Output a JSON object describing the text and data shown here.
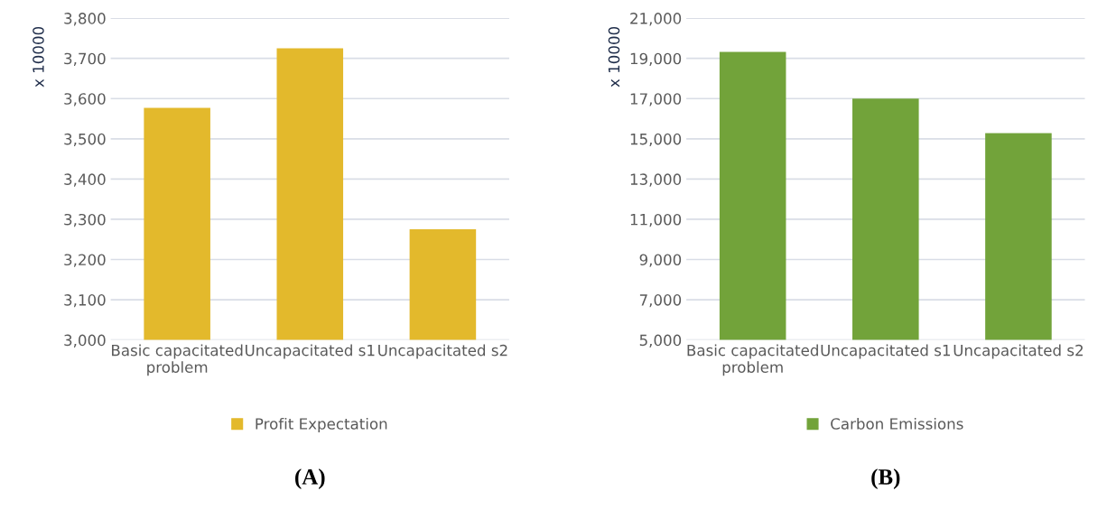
{
  "chart_data": [
    {
      "type": "bar",
      "categories": [
        "Basic capacitated problem",
        "Uncapacitated s1",
        "Uncapacitated s2"
      ],
      "ylabel": "x 10000",
      "series": [
        {
          "name": "Profit Expectation",
          "color": "#e3b92c",
          "values": [
            3577,
            3725,
            3275
          ]
        }
      ],
      "ylim": [
        3000,
        3800
      ],
      "yticks": [
        {
          "value": 3000,
          "label": "3,000"
        },
        {
          "value": 3100,
          "label": "3,100"
        },
        {
          "value": 3200,
          "label": "3,200"
        },
        {
          "value": 3300,
          "label": "3,300"
        },
        {
          "value": 3400,
          "label": "3,400"
        },
        {
          "value": 3500,
          "label": "3,500"
        },
        {
          "value": 3600,
          "label": "3,600"
        },
        {
          "value": 3700,
          "label": "3,700"
        },
        {
          "value": 3800,
          "label": "3,800"
        }
      ],
      "grid": "y",
      "legend": "bottom",
      "annotations": [
        "(A)"
      ]
    },
    {
      "type": "bar",
      "categories": [
        "Basic capacitated problem",
        "Uncapacitated s1",
        "Uncapacitated s2"
      ],
      "ylabel": "x 10000",
      "series": [
        {
          "name": "Carbon Emissions",
          "color": "#72a33a",
          "values": [
            19320,
            17000,
            15280
          ]
        }
      ],
      "ylim": [
        5000,
        21000
      ],
      "yticks": [
        {
          "value": 5000,
          "label": "5,000"
        },
        {
          "value": 7000,
          "label": "7,000"
        },
        {
          "value": 9000,
          "label": "9,000"
        },
        {
          "value": 11000,
          "label": "11,000"
        },
        {
          "value": 13000,
          "label": "13,000"
        },
        {
          "value": 15000,
          "label": "15,000"
        },
        {
          "value": 17000,
          "label": "17,000"
        },
        {
          "value": 19000,
          "label": "19,000"
        },
        {
          "value": 21000,
          "label": "21,000"
        }
      ],
      "grid": "y",
      "legend": "bottom",
      "annotations": [
        "(B)"
      ]
    }
  ]
}
